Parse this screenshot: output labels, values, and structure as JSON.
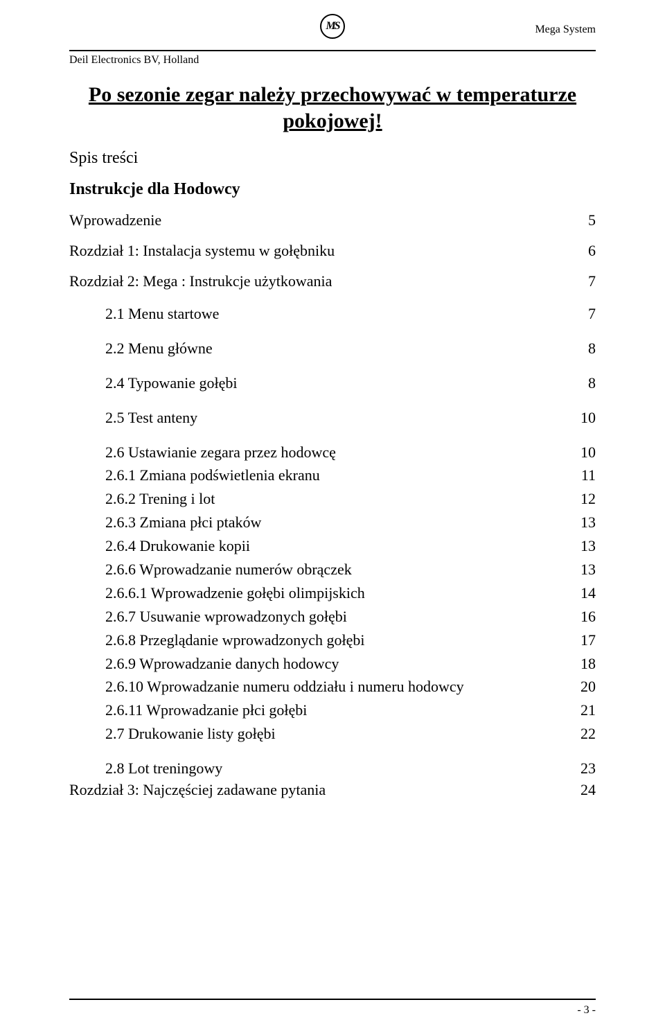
{
  "header": {
    "logo_text": "MS",
    "brand": "Mega System",
    "company": "Deil Electronics BV, Holland"
  },
  "title": {
    "line1": "Po sezonie zegar należy przechowywać w temperaturze",
    "line2": "pokojowej!"
  },
  "labels": {
    "contents": "Spis treści",
    "instructions": "Instrukcje dla Hodowcy"
  },
  "toc": {
    "intro": {
      "label": "Wprowadzenie",
      "page": "5"
    },
    "ch1": {
      "label": "Rozdział 1: Instalacja systemu w gołębniku",
      "page": "6"
    },
    "ch2": {
      "label": "Rozdział 2: Mega : Instrukcje użytkowania",
      "page": "7"
    },
    "s21": {
      "label": "2.1 Menu startowe",
      "page": "7"
    },
    "s22": {
      "label": "2.2 Menu główne",
      "page": "8"
    },
    "s24": {
      "label": "2.4 Typowanie gołębi",
      "page": "8"
    },
    "s25": {
      "label": "2.5 Test anteny",
      "page": "10"
    },
    "s26": {
      "label": "2.6 Ustawianie zegara przez hodowcę",
      "page": "10"
    },
    "s261": {
      "label": "2.6.1  Zmiana podświetlenia ekranu",
      "page": "11"
    },
    "s262": {
      "label": "2.6.2  Trening i lot",
      "page": "12"
    },
    "s263": {
      "label": "2.6.3  Zmiana płci ptaków",
      "page": "13"
    },
    "s264": {
      "label": "2.6.4  Drukowanie kopii",
      "page": "13"
    },
    "s266": {
      "label": "2.6.6 Wprowadzanie numerów obrączek",
      "page": "13"
    },
    "s2661": {
      "label": "2.6.6.1 Wprowadzenie gołębi  olimpijskich",
      "page": "14"
    },
    "s267": {
      "label": "2.6.7 Usuwanie wprowadzonych gołębi",
      "page": "16"
    },
    "s268": {
      "label": "2.6.8  Przeglądanie wprowadzonych gołębi",
      "page": "17"
    },
    "s269": {
      "label": "2.6.9   Wprowadzanie danych hodowcy",
      "page": "18"
    },
    "s2610": {
      "label": "2.6.10 Wprowadzanie numeru oddziału i numeru hodowcy",
      "page": "20"
    },
    "s2611": {
      "label": "2.6.11 Wprowadzanie płci gołębi",
      "page": "21"
    },
    "s27": {
      "label": "2.7 Drukowanie listy gołębi",
      "page": "22"
    },
    "s28": {
      "label": "2.8  Lot treningowy",
      "page": "23"
    },
    "ch3": {
      "label": "Rozdział 3: Najczęściej zadawane pytania",
      "page": "24"
    }
  },
  "footer": {
    "page_number": "- 3 -"
  }
}
